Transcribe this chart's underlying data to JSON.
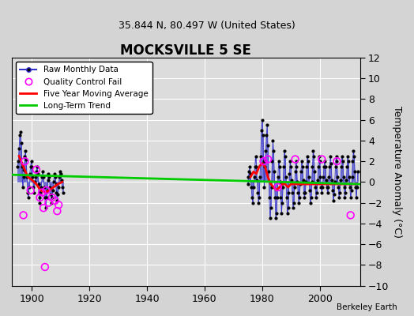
{
  "title": "MOCKSVILLE 5 SE",
  "subtitle": "35.844 N, 80.497 W (United States)",
  "ylabel": "Temperature Anomaly (°C)",
  "credit": "Berkeley Earth",
  "xlim": [
    1893,
    2014
  ],
  "ylim": [
    -10,
    12
  ],
  "yticks": [
    -10,
    -8,
    -6,
    -4,
    -2,
    0,
    2,
    4,
    6,
    8,
    10,
    12
  ],
  "xticks": [
    1900,
    1920,
    1940,
    1960,
    1980,
    2000
  ],
  "bg_color": "#e8e8e8",
  "plot_bg": "#dcdcdc",
  "grid_color": "white",
  "segment1_years": [
    1895,
    1910
  ],
  "segment2_years": [
    1975,
    2013
  ],
  "raw1_x": [
    1895,
    1895.25,
    1895.5,
    1895.75,
    1896,
    1896.25,
    1896.5,
    1896.75,
    1897,
    1897.25,
    1897.5,
    1897.75,
    1898,
    1898.25,
    1898.5,
    1898.75,
    1899,
    1899.25,
    1899.5,
    1899.75,
    1900,
    1900.25,
    1900.5,
    1900.75,
    1901,
    1901.25,
    1901.5,
    1901.75,
    1902,
    1902.25,
    1902.5,
    1902.75,
    1903,
    1903.25,
    1903.5,
    1903.75,
    1904,
    1904.25,
    1904.5,
    1904.75,
    1905,
    1905.25,
    1905.5,
    1905.75,
    1906,
    1906.25,
    1906.5,
    1906.75,
    1907,
    1907.25,
    1907.5,
    1907.75,
    1908,
    1908.25,
    1908.5,
    1908.75,
    1909,
    1909.25,
    1909.5,
    1909.75,
    1910,
    1910.25,
    1910.5,
    1910.75
  ],
  "raw1_y": [
    1.5,
    2.0,
    3.2,
    4.5,
    4.8,
    3.8,
    1.5,
    -0.5,
    0.5,
    1.2,
    2.5,
    3.0,
    2.2,
    0.5,
    -1.0,
    -1.5,
    -0.5,
    0.8,
    1.5,
    2.0,
    1.5,
    0.5,
    -0.5,
    -1.0,
    0.0,
    0.5,
    1.0,
    1.5,
    0.8,
    -0.2,
    -1.5,
    -2.0,
    -1.0,
    -0.5,
    0.5,
    1.0,
    0.5,
    -0.5,
    -1.5,
    -2.5,
    -1.5,
    -0.8,
    0.2,
    0.8,
    0.5,
    -0.5,
    -1.2,
    -2.0,
    -1.5,
    -0.8,
    0.0,
    0.8,
    0.5,
    -0.2,
    -1.0,
    -1.8,
    -1.2,
    -0.5,
    0.5,
    1.0,
    0.8,
    0.2,
    -0.5,
    -1.0
  ],
  "raw2_x": [
    1975,
    1975.25,
    1975.5,
    1975.75,
    1976,
    1976.25,
    1976.5,
    1976.75,
    1977,
    1977.25,
    1977.5,
    1977.75,
    1978,
    1978.25,
    1978.5,
    1978.75,
    1979,
    1979.25,
    1979.5,
    1979.75,
    1980,
    1980.25,
    1980.5,
    1980.75,
    1981,
    1981.25,
    1981.5,
    1981.75,
    1982,
    1982.25,
    1982.5,
    1982.75,
    1983,
    1983.25,
    1983.5,
    1983.75,
    1984,
    1984.25,
    1984.5,
    1984.75,
    1985,
    1985.25,
    1985.5,
    1985.75,
    1986,
    1986.25,
    1986.5,
    1986.75,
    1987,
    1987.25,
    1987.5,
    1987.75,
    1988,
    1988.25,
    1988.5,
    1988.75,
    1989,
    1989.25,
    1989.5,
    1989.75,
    1990,
    1990.25,
    1990.5,
    1990.75,
    1991,
    1991.25,
    1991.5,
    1991.75,
    1992,
    1992.25,
    1992.5,
    1992.75,
    1993,
    1993.25,
    1993.5,
    1993.75,
    1994,
    1994.25,
    1994.5,
    1994.75,
    1995,
    1995.25,
    1995.5,
    1995.75,
    1996,
    1996.25,
    1996.5,
    1996.75,
    1997,
    1997.25,
    1997.5,
    1997.75,
    1998,
    1998.25,
    1998.5,
    1998.75,
    1999,
    1999.25,
    1999.5,
    1999.75,
    2000,
    2000.25,
    2000.5,
    2000.75,
    2001,
    2001.25,
    2001.5,
    2001.75,
    2002,
    2002.25,
    2002.5,
    2002.75,
    2003,
    2003.25,
    2003.5,
    2003.75,
    2004,
    2004.25,
    2004.5,
    2004.75,
    2005,
    2005.25,
    2005.5,
    2005.75,
    2006,
    2006.25,
    2006.5,
    2006.75,
    2007,
    2007.25,
    2007.5,
    2007.75,
    2008,
    2008.25,
    2008.5,
    2008.75,
    2009,
    2009.25,
    2009.5,
    2009.75,
    2010,
    2010.25,
    2010.5,
    2010.75,
    2011,
    2011.25,
    2011.5,
    2011.75,
    2012,
    2012.25,
    2012.5,
    2012.75,
    2013,
    2013.25
  ],
  "raw2_y": [
    -0.2,
    0.5,
    1.0,
    1.5,
    0.8,
    -0.5,
    -1.5,
    -2.0,
    -0.5,
    0.5,
    1.5,
    2.5,
    1.5,
    0.2,
    -1.0,
    -2.0,
    -1.5,
    0.5,
    2.5,
    5.0,
    6.0,
    4.5,
    2.0,
    -0.5,
    1.5,
    3.0,
    4.5,
    5.5,
    3.5,
    1.0,
    -1.5,
    -3.5,
    -2.5,
    -0.5,
    2.0,
    4.0,
    3.0,
    1.0,
    -1.5,
    -3.5,
    -3.0,
    -1.5,
    0.5,
    2.0,
    1.5,
    0.0,
    -1.5,
    -3.0,
    -2.0,
    -0.5,
    1.5,
    3.0,
    2.5,
    0.5,
    -1.5,
    -3.0,
    -2.5,
    -1.0,
    0.8,
    2.0,
    1.5,
    0.2,
    -1.0,
    -2.5,
    -2.0,
    -0.5,
    1.0,
    2.0,
    1.5,
    0.0,
    -1.0,
    -2.0,
    -1.5,
    -0.2,
    1.0,
    2.0,
    1.5,
    0.2,
    -1.0,
    -1.5,
    -1.0,
    0.0,
    1.5,
    2.5,
    2.0,
    0.5,
    -0.8,
    -2.0,
    -1.5,
    0.0,
    1.5,
    3.0,
    2.5,
    1.0,
    -0.5,
    -1.5,
    -1.0,
    0.2,
    1.5,
    2.5,
    2.0,
    0.5,
    -0.5,
    -1.0,
    -0.5,
    0.5,
    1.5,
    2.0,
    1.5,
    0.2,
    -0.5,
    -1.0,
    -0.5,
    0.5,
    1.5,
    2.5,
    1.8,
    0.2,
    -0.8,
    -1.8,
    -1.2,
    0.0,
    1.5,
    2.5,
    2.0,
    0.5,
    -0.5,
    -1.5,
    -1.0,
    0.2,
    1.5,
    2.5,
    2.0,
    0.5,
    -0.5,
    -1.5,
    -1.0,
    0.2,
    1.5,
    2.5,
    2.0,
    0.5,
    -0.5,
    -1.5,
    -0.8,
    0.5,
    2.0,
    3.0,
    2.5,
    1.0,
    -0.5,
    -1.5,
    -0.5,
    1.0
  ],
  "trend_x": [
    1893,
    2014
  ],
  "trend_y": [
    0.7,
    -0.2
  ],
  "ma1_x": [
    1895.5,
    1897.0,
    1898.5,
    1900.0,
    1901.5,
    1903.0,
    1904.5,
    1906.0,
    1907.5,
    1909.0,
    1910.5
  ],
  "ma1_y": [
    2.5,
    1.5,
    0.5,
    0.2,
    -0.2,
    -0.8,
    -1.0,
    -0.8,
    -0.5,
    -0.2,
    0.0
  ],
  "ma2_x": [
    1976,
    1977,
    1978,
    1979,
    1980,
    1981,
    1982,
    1983,
    1984,
    1985,
    1986,
    1987,
    1988,
    1989,
    1990,
    1991,
    1992,
    1993,
    1994,
    1995,
    1996,
    1997,
    1998,
    1999,
    2000,
    2001,
    2002,
    2003,
    2004,
    2005,
    2006,
    2007,
    2008,
    2009,
    2010,
    2011,
    2012,
    2013
  ],
  "ma2_y": [
    0.5,
    1.0,
    0.8,
    1.5,
    1.8,
    1.5,
    0.5,
    -0.2,
    -0.5,
    -0.8,
    -0.5,
    -0.2,
    -0.2,
    -0.5,
    -0.2,
    -0.2,
    -0.2,
    -0.2,
    -0.2,
    -0.2,
    -0.2,
    -0.2,
    -0.2,
    -0.2,
    -0.2,
    -0.2,
    -0.2,
    -0.2,
    -0.2,
    -0.2,
    -0.2,
    -0.2,
    -0.2,
    -0.2,
    -0.2,
    -0.2,
    -0.2,
    -0.2
  ],
  "qc_x": [
    1897.5,
    1899.5,
    1901.5,
    1902.75,
    1903.5,
    1904.0,
    1905.75,
    1907.0,
    1908.0,
    1908.75,
    1909.25,
    1905.0,
    1897.0,
    1980.5,
    1982.0,
    1985.5,
    1991.5,
    2000.75,
    2006.0,
    2010.75
  ],
  "qc_y": [
    2.0,
    -0.8,
    1.2,
    -1.5,
    -1.0,
    -2.5,
    -2.0,
    -1.5,
    -1.8,
    -2.8,
    -2.2,
    -0.8,
    -3.2,
    2.0,
    2.2,
    -0.5,
    2.2,
    2.2,
    2.0,
    -3.2
  ],
  "isolated_qc_x": [
    1904.5
  ],
  "isolated_qc_y": [
    -8.2
  ]
}
